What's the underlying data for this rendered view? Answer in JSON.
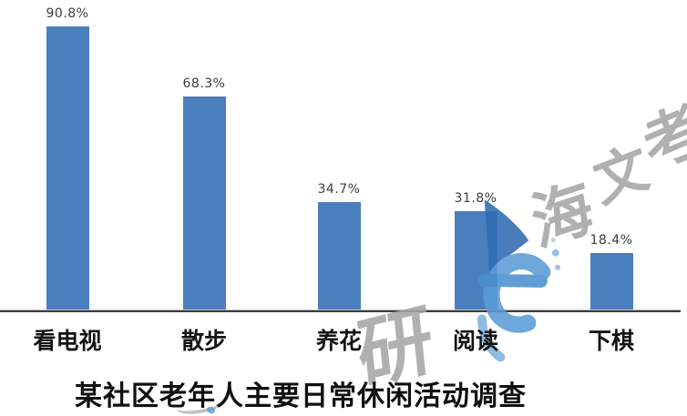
{
  "chart_data": {
    "type": "bar",
    "title": "某社区老年人主要日常休闲活动调查",
    "categories": [
      "看电视",
      "散步",
      "养花",
      "阅读",
      "下棋"
    ],
    "values": [
      90.8,
      68.3,
      34.7,
      31.8,
      18.4
    ],
    "value_labels": [
      "90.8%",
      "68.3%",
      "34.7%",
      "31.8%",
      "18.4%"
    ],
    "xlabel": "",
    "ylabel": "",
    "ylim": [
      0,
      100
    ],
    "grid": false,
    "legend": false,
    "bar_color": "#4a7fbe",
    "axis_color": "#3c3c3c",
    "value_label_color": "#3d3d3d",
    "text_color": "#101010"
  },
  "watermark": {
    "chars": {
      "c0": "海",
      "c1": "文",
      "c2": "考",
      "c3": "研"
    },
    "logo": "haiwen-e-logo",
    "gray_color": "#a6a6a6",
    "blue_color": "#4e8ecb"
  }
}
